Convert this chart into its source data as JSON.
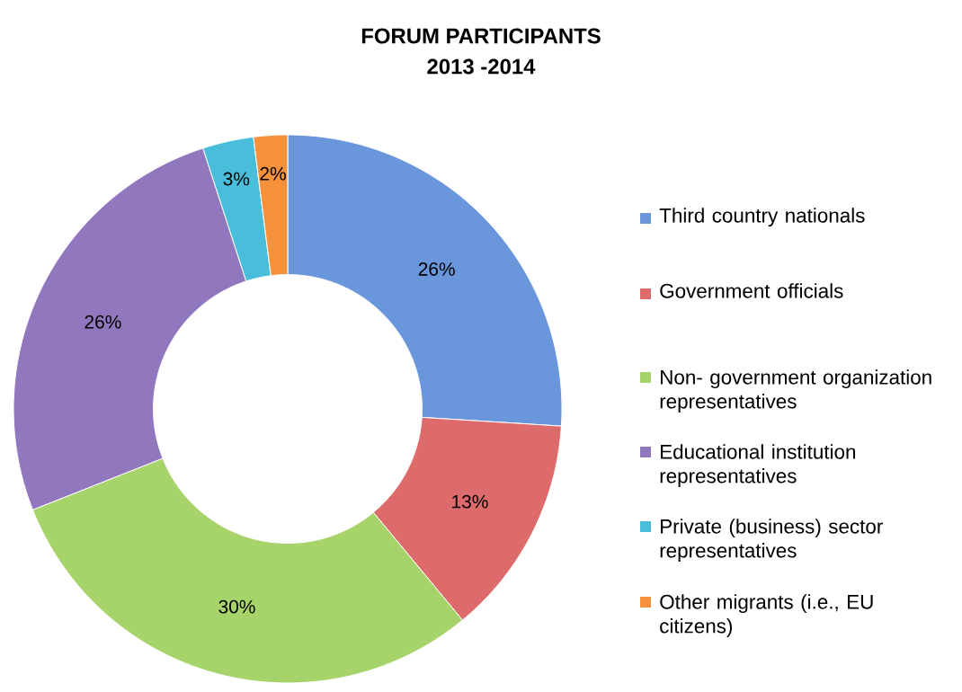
{
  "chart_data": {
    "type": "donut",
    "title": "FORUM PARTICIPANTS",
    "subtitle": "2013 -2014",
    "categories": [
      "Third country nationals",
      "Government officials",
      "Non- government organization representatives",
      "Educational institution representatives",
      "Private (business) sector representatives",
      "Other migrants (i.e., EU citizens)"
    ],
    "values": [
      26,
      13,
      30,
      26,
      3,
      2
    ],
    "value_labels": [
      "26%",
      "13%",
      "30%",
      "26%",
      "3%",
      "2%"
    ],
    "colors": [
      "#6a96dc",
      "#de6b6b",
      "#a6d46a",
      "#9177bd",
      "#49bedb",
      "#f4913a"
    ],
    "legend": "right"
  }
}
